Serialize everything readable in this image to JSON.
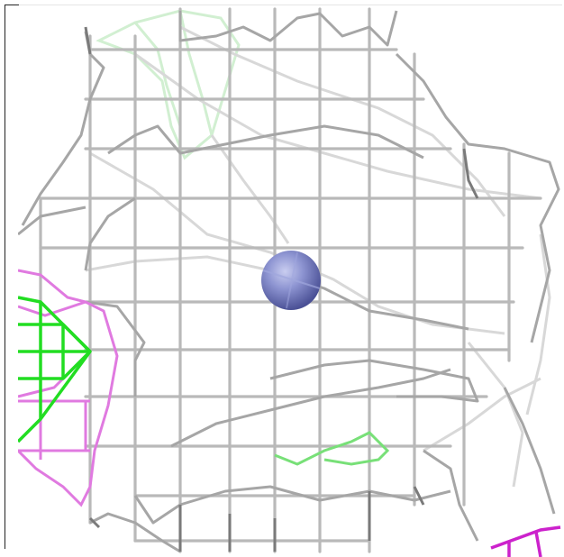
{
  "viewer": {
    "mesh_color": "#a9a9a9",
    "mesh_dark_color": "#6e6e6e",
    "ion_color": "#7f86c9",
    "surface_green": "#2de02d",
    "surface_light_green": "#bff0bf",
    "surface_magenta": "#e07ae0",
    "surface_purple": "#cc33cc",
    "icons": [
      "density-mesh-icon",
      "metal-ion-sphere-icon"
    ]
  }
}
